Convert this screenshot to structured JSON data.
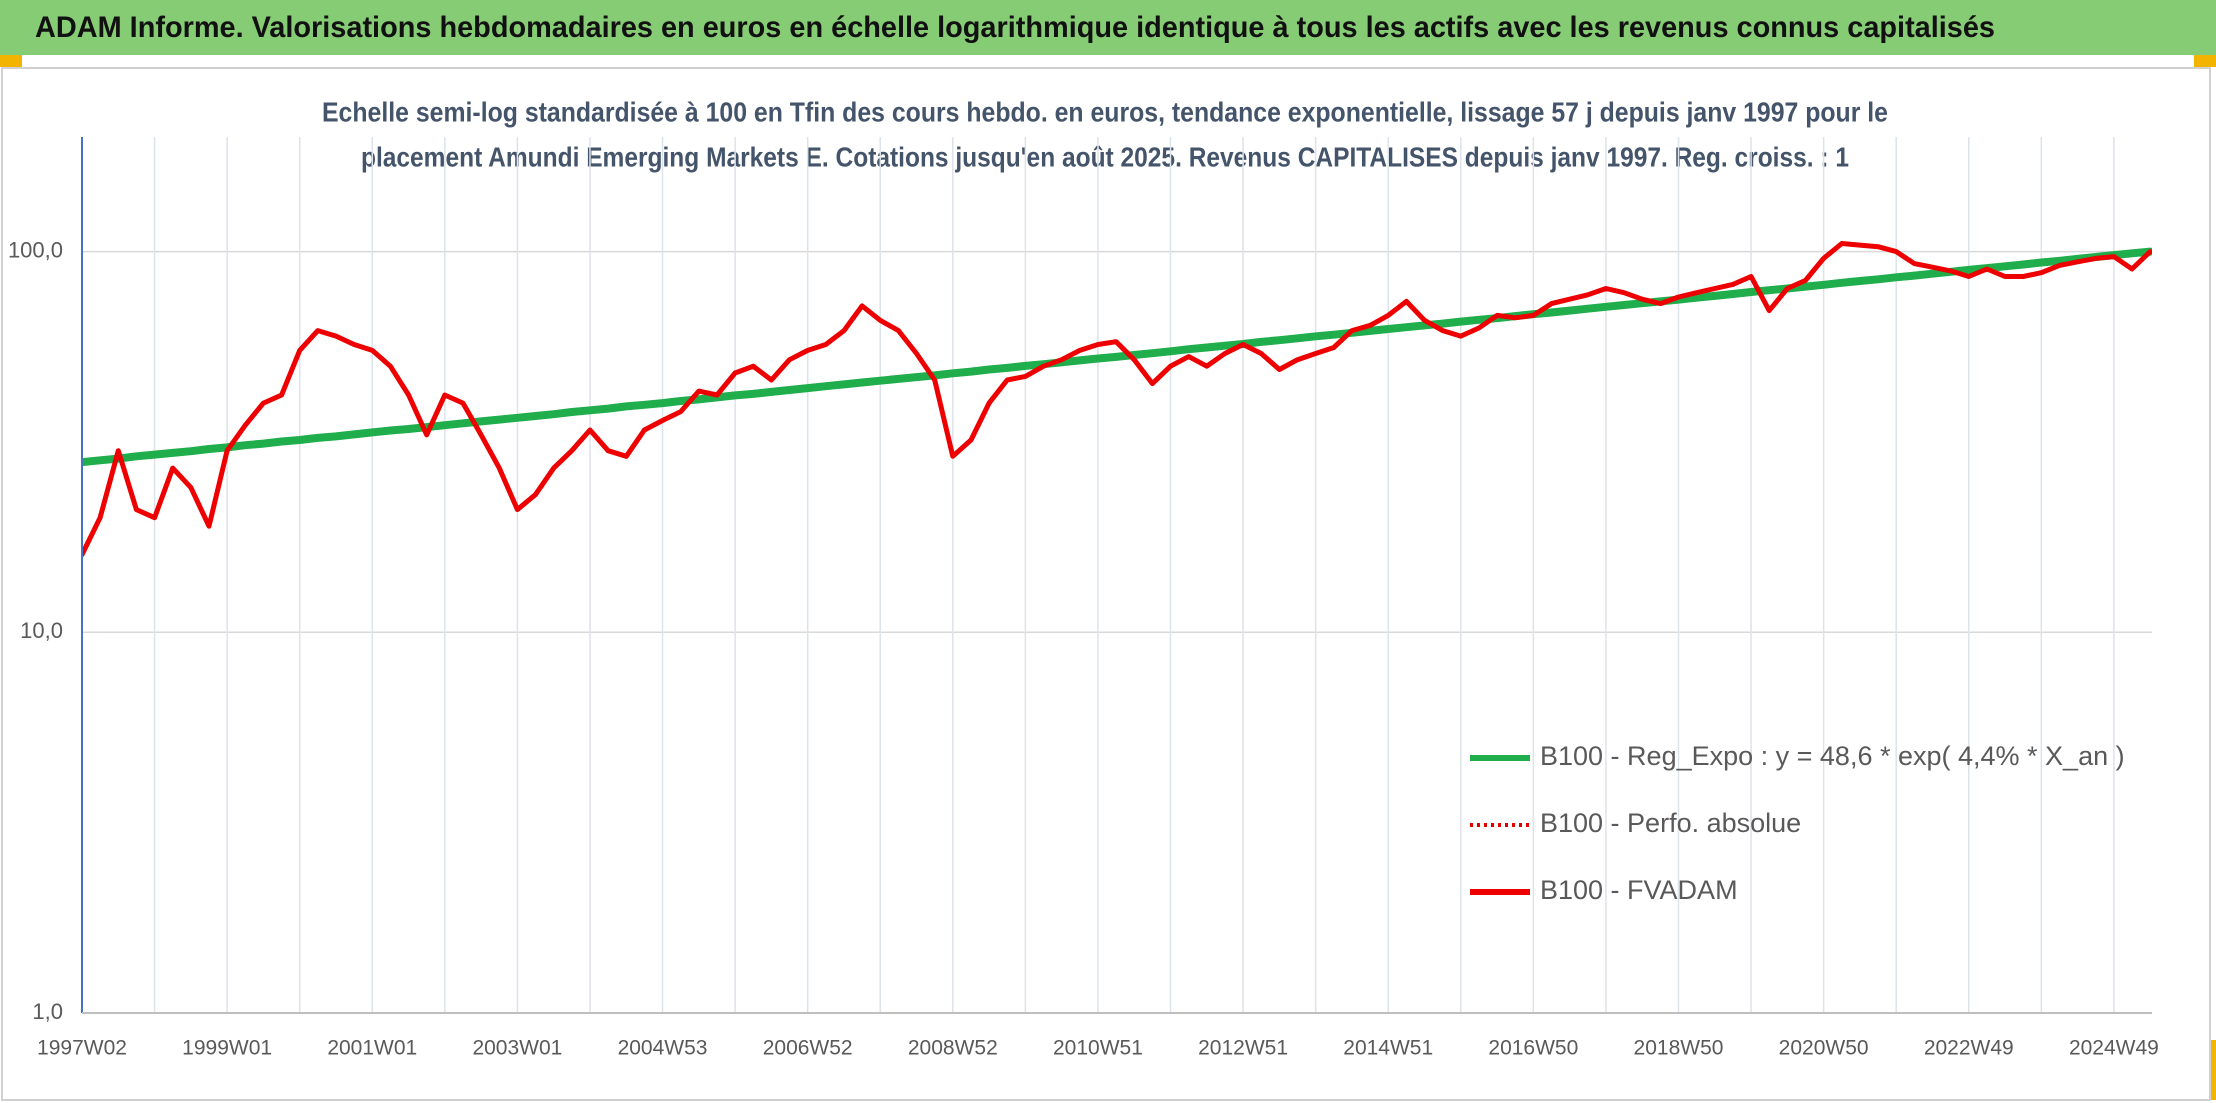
{
  "chart_data": {
    "type": "line",
    "title": "ADAM Informe. Valorisations hebdomadaires en euros en échelle logarithmique identique à tous les actifs avec les revenus connus capitalisés",
    "subtitle": [
      "Echelle semi-log standardisée à 100 en Tfin des cours hebdo. en euros, tendance exponentielle, lissage 57 j depuis janv 1997 pour le",
      "placement Amundi Emerging Markets E. Cotations jusqu'en août 2025. Revenus CAPITALISES depuis janv 1997. Reg. croiss. : 1"
    ],
    "categories": [
      "1997W02",
      null,
      null,
      null,
      null,
      null,
      null,
      null,
      "1999W01",
      null,
      null,
      null,
      null,
      null,
      null,
      null,
      "2001W01",
      null,
      null,
      null,
      null,
      null,
      null,
      null,
      "2003W01",
      null,
      null,
      null,
      null,
      null,
      null,
      null,
      "2004W53",
      null,
      null,
      null,
      null,
      null,
      null,
      null,
      "2006W52",
      null,
      null,
      null,
      null,
      null,
      null,
      null,
      "2008W52",
      null,
      null,
      null,
      null,
      null,
      null,
      null,
      "2010W51",
      null,
      null,
      null,
      null,
      null,
      null,
      null,
      "2012W51",
      null,
      null,
      null,
      null,
      null,
      null,
      null,
      "2014W51",
      null,
      null,
      null,
      null,
      null,
      null,
      null,
      "2016W50",
      null,
      null,
      null,
      null,
      null,
      null,
      null,
      "2018W50",
      null,
      null,
      null,
      null,
      null,
      null,
      null,
      "2020W50",
      null,
      null,
      null,
      null,
      null,
      null,
      null,
      "2022W49",
      null,
      null,
      null,
      null,
      null,
      null,
      null,
      "2024W49",
      null,
      null
    ],
    "series": [
      {
        "name": "B100 - Reg_Expo : y = 48,6 * exp( 4,4% *  X_an )",
        "color": "#1fae4b",
        "line_style": "solid",
        "values": [
          28.0,
          28.3,
          28.6,
          29.0,
          29.3,
          29.6,
          29.9,
          30.3,
          30.6,
          31.0,
          31.3,
          31.7,
          32.0,
          32.4,
          32.7,
          33.1,
          33.5,
          33.9,
          34.2,
          34.6,
          35.0,
          35.4,
          35.8,
          36.2,
          36.6,
          37.0,
          37.4,
          37.9,
          38.3,
          38.7,
          39.2,
          39.6,
          40.0,
          40.5,
          40.9,
          41.4,
          41.9,
          42.3,
          42.8,
          43.3,
          43.8,
          44.3,
          44.8,
          45.3,
          45.8,
          46.3,
          46.8,
          47.3,
          47.9,
          48.4,
          49.0,
          49.5,
          50.1,
          50.6,
          51.2,
          51.8,
          52.4,
          52.9,
          53.5,
          54.1,
          54.7,
          55.4,
          56.0,
          56.6,
          57.2,
          57.9,
          58.5,
          59.2,
          59.9,
          60.5,
          61.2,
          61.9,
          62.6,
          63.3,
          64.0,
          64.7,
          65.5,
          66.2,
          66.9,
          67.7,
          68.5,
          69.2,
          70.0,
          70.8,
          71.6,
          72.4,
          73.2,
          74.0,
          74.8,
          75.7,
          76.5,
          77.4,
          78.3,
          79.2,
          80.0,
          80.9,
          81.8,
          82.8,
          83.7,
          84.6,
          85.6,
          86.5,
          87.5,
          88.5,
          89.5,
          90.5,
          91.5,
          92.5,
          93.6,
          94.6,
          95.7,
          96.8,
          97.9,
          99.0,
          100.0
        ]
      },
      {
        "name": "B100 - Perfo. absolue",
        "color": "#e00000",
        "line_style": "dotted",
        "values": [
          null,
          null,
          null,
          null,
          null,
          null,
          null,
          null,
          null,
          null,
          null,
          null,
          null,
          null,
          null,
          null,
          null,
          null,
          null,
          null,
          null,
          null,
          null,
          null,
          null,
          null,
          null,
          null,
          null,
          null,
          null,
          null,
          null,
          null,
          null,
          null,
          null,
          null,
          null,
          null,
          null,
          null,
          null,
          null,
          null,
          null,
          null,
          null,
          null,
          null,
          null,
          null,
          null,
          null,
          null,
          null,
          null,
          null,
          null,
          null,
          null,
          null,
          null,
          null,
          null,
          null,
          null,
          null,
          null,
          null,
          null,
          null,
          null,
          null,
          null,
          null,
          null,
          null,
          null,
          null,
          null,
          null,
          null,
          null,
          null,
          null,
          null,
          null,
          null,
          null,
          null,
          null,
          null,
          null,
          null,
          null,
          null,
          null,
          null,
          null,
          null,
          null,
          null,
          null,
          null,
          null,
          null,
          null,
          null,
          null,
          null,
          null,
          null,
          null,
          null
        ]
      },
      {
        "name": "B100 - FVADAM",
        "color": "#ee0000",
        "line_style": "solid",
        "values": [
          16,
          20,
          30,
          21,
          20,
          27,
          24,
          19,
          30,
          35,
          40,
          42,
          55,
          62,
          60,
          57,
          55,
          50,
          42,
          33,
          42,
          40,
          33,
          27,
          21,
          23,
          27,
          30,
          34,
          30,
          29,
          34,
          36,
          38,
          43,
          42,
          48,
          50,
          46,
          52,
          55,
          57,
          62,
          72,
          66,
          62,
          54,
          46,
          29,
          32,
          40,
          46,
          47,
          50,
          52,
          55,
          57,
          58,
          52,
          45,
          50,
          53,
          50,
          54,
          57,
          54,
          49,
          52,
          54,
          56,
          62,
          64,
          68,
          74,
          66,
          62,
          60,
          63,
          68,
          67,
          68,
          73,
          75,
          77,
          80,
          78,
          75,
          73,
          76,
          78,
          80,
          82,
          86,
          70,
          80,
          84,
          96,
          105,
          104,
          103,
          100,
          93,
          91,
          89,
          86,
          90,
          86,
          86,
          88,
          92,
          94,
          96,
          97,
          90,
          100
        ]
      }
    ],
    "ylim": [
      1,
      200
    ],
    "yticks": [
      {
        "value": 1,
        "label": "1,0"
      },
      {
        "value": 10,
        "label": "10,0"
      },
      {
        "value": 100,
        "label": "100,0"
      }
    ],
    "log_y": true,
    "grid": true,
    "legend": "lower right"
  }
}
